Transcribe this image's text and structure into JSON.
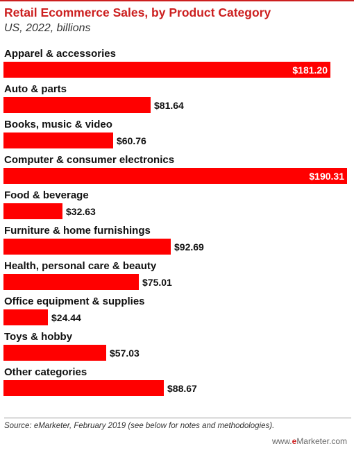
{
  "title": "Retail Ecommerce Sales, by Product Category",
  "subtitle": "US, 2022, billions",
  "source": "Source: eMarketer, February 2019 (see below for notes and methodologies).",
  "watermark": {
    "prefix": "www.",
    "brand": "e",
    "rest": "Marketer.com"
  },
  "colors": {
    "bar": "#ff0000",
    "title": "#cc1f1f"
  },
  "chart_data": {
    "type": "bar",
    "orientation": "horizontal",
    "title": "Retail Ecommerce Sales, by Product Category",
    "subtitle": "US, 2022, billions",
    "categories": [
      "Apparel & accessories",
      "Auto & parts",
      "Books, music & video",
      "Computer & consumer electronics",
      "Food & beverage",
      "Furniture & home furnishings",
      "Health, personal care & beauty",
      "Office equipment & supplies",
      "Toys & hobby",
      "Other categories"
    ],
    "values": [
      181.2,
      81.64,
      60.76,
      190.31,
      32.63,
      92.69,
      75.01,
      24.44,
      57.03,
      88.67
    ],
    "value_labels": [
      "$181.20",
      "$81.64",
      "$60.76",
      "$190.31",
      "$32.63",
      "$92.69",
      "$75.01",
      "$24.44",
      "$57.03",
      "$88.67"
    ],
    "xlim": [
      0,
      190.31
    ],
    "grid": false,
    "legend": "none"
  }
}
